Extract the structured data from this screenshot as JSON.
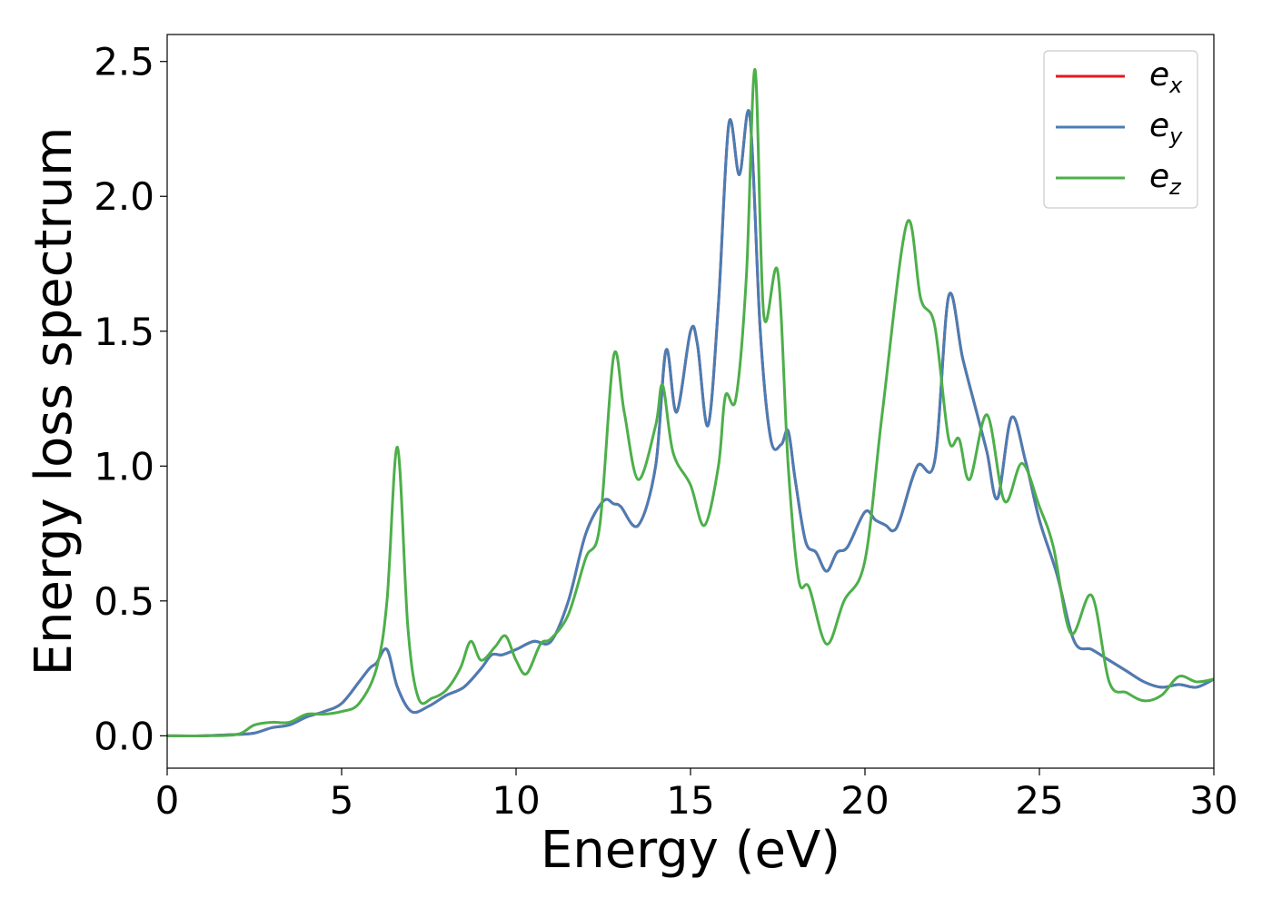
{
  "chart_data": {
    "type": "line",
    "title": "",
    "xlabel": "Energy (eV)",
    "ylabel": "Energy loss spectrum",
    "xlim": [
      0,
      30
    ],
    "ylim": [
      -0.12,
      2.6
    ],
    "xticks": [
      0,
      5,
      10,
      15,
      20,
      25,
      30
    ],
    "xtick_labels": [
      "0",
      "5",
      "10",
      "15",
      "20",
      "25",
      "30"
    ],
    "yticks": [
      0.0,
      0.5,
      1.0,
      1.5,
      2.0,
      2.5
    ],
    "ytick_labels": [
      "0.0",
      "0.5",
      "1.0",
      "1.5",
      "2.0",
      "2.5"
    ],
    "grid": false,
    "legend_position": "top-right",
    "series": [
      {
        "name": "e_x",
        "label_main": "e",
        "label_sub": "x",
        "color": "#e41a1c",
        "x": [
          0,
          1,
          2,
          2.5,
          3,
          3.5,
          4,
          4.5,
          5,
          5.5,
          5.8,
          6,
          6.3,
          6.6,
          7,
          7.5,
          8,
          8.5,
          9,
          9.3,
          9.6,
          10,
          10.5,
          11,
          11.5,
          12,
          12.5,
          12.8,
          13,
          13.5,
          14,
          14.3,
          14.6,
          15,
          15.2,
          15.5,
          15.8,
          16.1,
          16.4,
          16.7,
          17,
          17.3,
          17.6,
          17.8,
          18,
          18.3,
          18.6,
          18.9,
          19.2,
          19.5,
          20,
          20.3,
          20.6,
          20.8,
          21,
          21.5,
          22,
          22.4,
          22.8,
          23.2,
          23.5,
          23.8,
          24.2,
          24.6,
          25,
          25.5,
          26,
          26.5,
          27,
          27.5,
          28,
          28.5,
          29,
          29.5,
          30
        ],
        "y": [
          0,
          0,
          0.005,
          0.01,
          0.03,
          0.04,
          0.07,
          0.09,
          0.12,
          0.2,
          0.25,
          0.27,
          0.32,
          0.18,
          0.09,
          0.11,
          0.15,
          0.18,
          0.25,
          0.3,
          0.3,
          0.32,
          0.35,
          0.35,
          0.5,
          0.75,
          0.87,
          0.86,
          0.85,
          0.78,
          1.0,
          1.43,
          1.2,
          1.5,
          1.45,
          1.15,
          1.6,
          2.27,
          2.08,
          2.3,
          1.5,
          1.1,
          1.08,
          1.13,
          0.95,
          0.72,
          0.68,
          0.61,
          0.68,
          0.7,
          0.83,
          0.8,
          0.78,
          0.76,
          0.8,
          1.0,
          1.02,
          1.63,
          1.4,
          1.2,
          1.05,
          0.88,
          1.18,
          1.02,
          0.8,
          0.6,
          0.35,
          0.32,
          0.28,
          0.24,
          0.2,
          0.18,
          0.19,
          0.18,
          0.21
        ]
      },
      {
        "name": "e_y",
        "label_main": "e",
        "label_sub": "y",
        "color": "#4a7db5",
        "x": [
          0,
          1,
          2,
          2.5,
          3,
          3.5,
          4,
          4.5,
          5,
          5.5,
          5.8,
          6,
          6.3,
          6.6,
          7,
          7.5,
          8,
          8.5,
          9,
          9.3,
          9.6,
          10,
          10.5,
          11,
          11.5,
          12,
          12.5,
          12.8,
          13,
          13.5,
          14,
          14.3,
          14.6,
          15,
          15.2,
          15.5,
          15.8,
          16.1,
          16.4,
          16.7,
          17,
          17.3,
          17.6,
          17.8,
          18,
          18.3,
          18.6,
          18.9,
          19.2,
          19.5,
          20,
          20.3,
          20.6,
          20.8,
          21,
          21.5,
          22,
          22.4,
          22.8,
          23.2,
          23.5,
          23.8,
          24.2,
          24.6,
          25,
          25.5,
          26,
          26.5,
          27,
          27.5,
          28,
          28.5,
          29,
          29.5,
          30
        ],
        "y": [
          0,
          0,
          0.005,
          0.01,
          0.03,
          0.04,
          0.07,
          0.09,
          0.12,
          0.2,
          0.25,
          0.27,
          0.32,
          0.18,
          0.09,
          0.11,
          0.15,
          0.18,
          0.25,
          0.3,
          0.3,
          0.32,
          0.35,
          0.35,
          0.5,
          0.75,
          0.87,
          0.86,
          0.85,
          0.78,
          1.0,
          1.43,
          1.2,
          1.5,
          1.45,
          1.15,
          1.6,
          2.27,
          2.08,
          2.3,
          1.5,
          1.1,
          1.08,
          1.13,
          0.95,
          0.72,
          0.68,
          0.61,
          0.68,
          0.7,
          0.83,
          0.8,
          0.78,
          0.76,
          0.8,
          1.0,
          1.02,
          1.63,
          1.4,
          1.2,
          1.05,
          0.88,
          1.18,
          1.02,
          0.8,
          0.6,
          0.35,
          0.32,
          0.28,
          0.24,
          0.2,
          0.18,
          0.19,
          0.18,
          0.21
        ]
      },
      {
        "name": "e_z",
        "label_main": "e",
        "label_sub": "z",
        "color": "#4daf4a",
        "x": [
          0,
          1,
          2,
          2.5,
          3,
          3.5,
          4,
          4.5,
          5,
          5.5,
          6,
          6.3,
          6.6,
          6.9,
          7.2,
          7.6,
          8,
          8.4,
          8.7,
          9,
          9.4,
          9.7,
          10,
          10.3,
          10.7,
          11,
          11.5,
          12,
          12.4,
          12.8,
          13.1,
          13.5,
          14,
          14.2,
          14.5,
          15,
          15.4,
          15.8,
          16,
          16.3,
          16.6,
          16.85,
          17.1,
          17.5,
          17.8,
          18.1,
          18.4,
          18.9,
          19.4,
          20,
          20.5,
          21.2,
          21.6,
          22,
          22.4,
          22.7,
          23,
          23.5,
          24,
          24.5,
          25,
          25.4,
          25.9,
          26.5,
          27,
          27.5,
          28,
          28.5,
          29,
          29.5,
          30
        ],
        "y": [
          0,
          0,
          0.005,
          0.04,
          0.05,
          0.05,
          0.08,
          0.08,
          0.09,
          0.12,
          0.25,
          0.5,
          1.07,
          0.4,
          0.14,
          0.14,
          0.17,
          0.25,
          0.35,
          0.28,
          0.33,
          0.37,
          0.28,
          0.23,
          0.34,
          0.36,
          0.45,
          0.66,
          0.78,
          1.41,
          1.2,
          0.95,
          1.15,
          1.3,
          1.05,
          0.93,
          0.78,
          1.0,
          1.26,
          1.25,
          1.7,
          2.47,
          1.56,
          1.72,
          1.0,
          0.58,
          0.55,
          0.34,
          0.5,
          0.65,
          1.2,
          1.9,
          1.62,
          1.52,
          1.1,
          1.1,
          0.95,
          1.19,
          0.87,
          1.01,
          0.85,
          0.7,
          0.38,
          0.52,
          0.2,
          0.16,
          0.13,
          0.15,
          0.22,
          0.2,
          0.21
        ]
      }
    ]
  }
}
